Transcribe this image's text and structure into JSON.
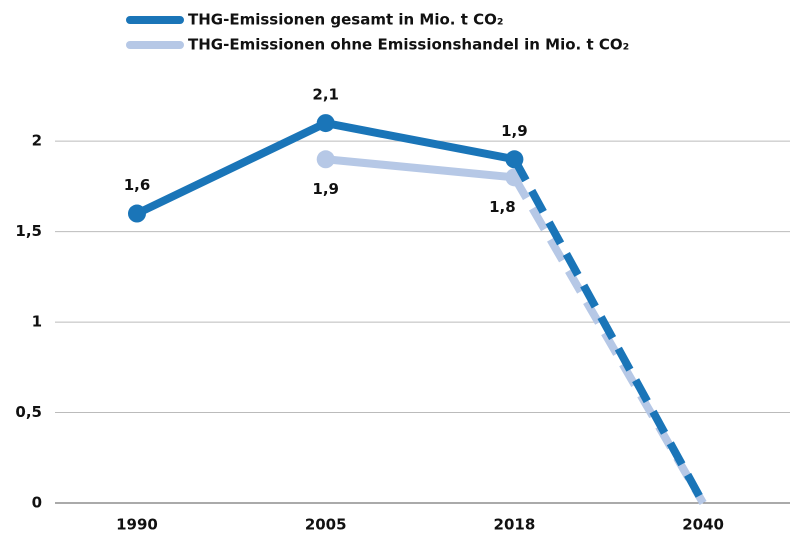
{
  "chart_data": {
    "type": "line",
    "categories": [
      "1990",
      "2005",
      "2018",
      "2040"
    ],
    "series": [
      {
        "name": "THG-Emissionen gesamt in Mio. t CO₂",
        "color": "#1a75b8",
        "values": [
          1.6,
          2.1,
          1.9,
          0
        ],
        "value_labels": [
          "1,6",
          "2,1",
          "1,9",
          null
        ]
      },
      {
        "name": "THG-Emissionen ohne Emissionshandel in Mio. t CO₂",
        "color": "#b6c8e6",
        "values": [
          null,
          1.9,
          1.8,
          0
        ],
        "value_labels": [
          null,
          "1,9",
          "1,8",
          null
        ]
      }
    ],
    "dashed_after": "2018",
    "ylim": [
      0,
      2.2
    ],
    "yticks": [
      0,
      {
        "value": 0.5,
        "label": "0,5"
      },
      1,
      {
        "value": 1.5,
        "label": "1,5"
      },
      2
    ],
    "grid": true,
    "legend": "top"
  }
}
